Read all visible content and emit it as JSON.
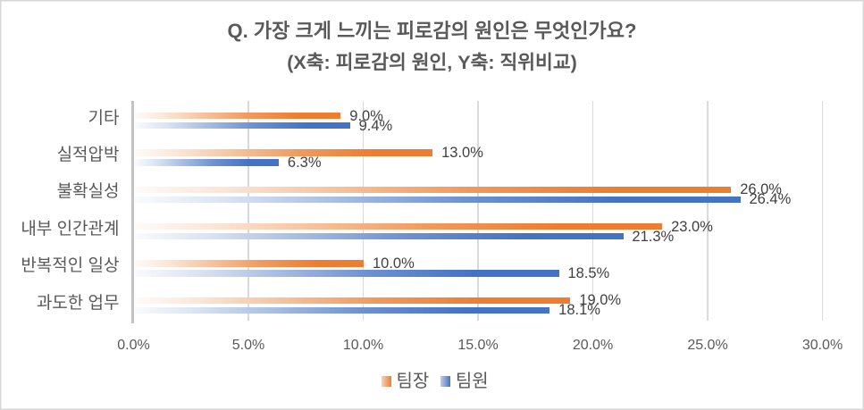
{
  "chart_data": {
    "type": "bar",
    "orientation": "horizontal",
    "title": "Q. 가장 크게 느끼는 피로감의 원인은 무엇인가요?",
    "subtitle": "(X축: 피로감의 원인, Y축: 직위비교)",
    "categories": [
      "기타",
      "실적압박",
      "불확실성",
      "내부 인간관계",
      "반복적인 일상",
      "과도한 업무"
    ],
    "series": [
      {
        "name": "팀장",
        "color": "#ED7D31",
        "values": [
          9.0,
          13.0,
          26.0,
          23.0,
          10.0,
          19.0
        ],
        "labels": [
          "9.0%",
          "13.0%",
          "26.0%",
          "23.0%",
          "10.0%",
          "19.0%"
        ]
      },
      {
        "name": "팀원",
        "color": "#4472C4",
        "values": [
          9.4,
          6.3,
          26.4,
          21.3,
          18.5,
          18.1
        ],
        "labels": [
          "9.4%",
          "6.3%",
          "26.4%",
          "21.3%",
          "18.5%",
          "18.1%"
        ]
      }
    ],
    "x_axis": {
      "min": 0,
      "max": 30,
      "step": 5,
      "tick_labels": [
        "0.0%",
        "5.0%",
        "10.0%",
        "15.0%",
        "20.0%",
        "25.0%",
        "30.0%"
      ]
    },
    "legend": {
      "position": "bottom",
      "entries": [
        "팀장",
        "팀원"
      ]
    },
    "grid": true,
    "colors": {
      "title_text": "#595959",
      "axis_text": "#595959",
      "data_label_text": "#404040",
      "gridline": "#D9D9D9",
      "axis_line": "#C3C3C3",
      "border": "#D7D7D7",
      "background": "#FFFFFF"
    },
    "bar_fill_style": "linear-gradient-left-light-to-full"
  }
}
